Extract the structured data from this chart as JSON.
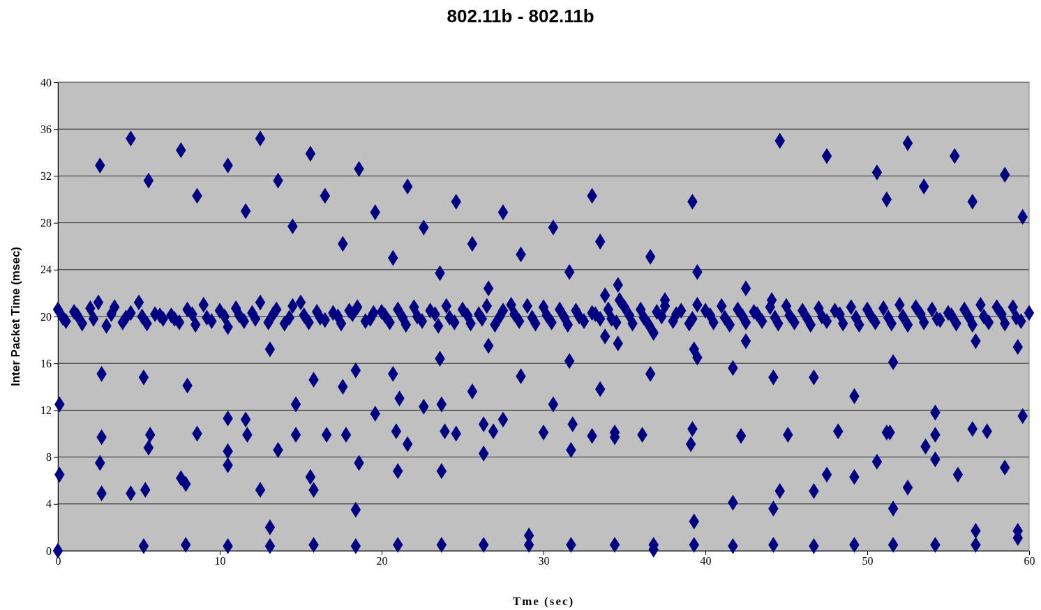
{
  "chart_data": {
    "type": "scatter",
    "title": "802.11b - 802.11b",
    "xlabel": "Tme (sec)",
    "ylabel": "Inter Packet Time (msec)",
    "xlim": [
      0,
      60
    ],
    "ylim": [
      0,
      40
    ],
    "xticks": [
      0,
      10,
      20,
      30,
      40,
      50,
      60
    ],
    "yticks": [
      0,
      4,
      8,
      12,
      16,
      20,
      24,
      28,
      32,
      36,
      40
    ],
    "grid": "y",
    "marker": "diamond",
    "series": [
      {
        "color": "#000080",
        "x": [
          0,
          0.1,
          0.1,
          2.6,
          2.7,
          2.7,
          2.6,
          2.7,
          4.5,
          4.5,
          5.6,
          5.3,
          5.7,
          5.6,
          5.4,
          5.3,
          7.6,
          8.6,
          8.0,
          8.6,
          7.6,
          7.9,
          7.9,
          10.5,
          11.6,
          10.5,
          11.6,
          11.7,
          10.5,
          10.5,
          10.5,
          12.5,
          13.6,
          13.1,
          13.6,
          12.5,
          13.1,
          13.1,
          15.6,
          14.5,
          16.5,
          14.7,
          15.8,
          14.7,
          16.6,
          15.6,
          15.8,
          15.8,
          17.6,
          18.6,
          19.6,
          17.6,
          18.4,
          17.8,
          18.6,
          18.4,
          18.4,
          20.7,
          21.6,
          19.6,
          20.7,
          21.1,
          20.9,
          21.6,
          21.0,
          21.0,
          22.6,
          23.6,
          24.6,
          22.6,
          23.6,
          23.7,
          23.9,
          24.6,
          23.7,
          23.7,
          25.6,
          27.5,
          26.6,
          25.6,
          26.6,
          26.3,
          26.9,
          27.5,
          26.3,
          26.3,
          28.6,
          30.6,
          28.6,
          30.6,
          30.0,
          29.1,
          29.1,
          31.6,
          33.0,
          33.5,
          31.6,
          31.8,
          33.0,
          33.5,
          33.8,
          33.8,
          34.6,
          34.6,
          31.7,
          31.7,
          34.4,
          34.4,
          34.4,
          36.6,
          36.6,
          36.1,
          36.8,
          36.8,
          36.8,
          39.2,
          39.5,
          39.3,
          39.5,
          39.2,
          39.1,
          39.3,
          39.3,
          41.7,
          42.2,
          42.5,
          42.5,
          41.7,
          41.7,
          44.6,
          44.2,
          45.1,
          44.6,
          44.2,
          44.2,
          47.5,
          46.7,
          48.2,
          47.5,
          46.7,
          46.7,
          50.6,
          51.2,
          52.5,
          53.5,
          49.2,
          51.6,
          50.6,
          51.2,
          51.4,
          51.6,
          52.5,
          49.2,
          49.2,
          51.6,
          55.4,
          56.5,
          58.5,
          59.6,
          54.2,
          54.2,
          53.6,
          54.2,
          55.6,
          56.7,
          56.5,
          57.4,
          58.5,
          59.3,
          59.6,
          56.7,
          56.7,
          59.3,
          59.3,
          54.2,
          34.7,
          37.5,
          44.1,
          0,
          0.5,
          1,
          1.5,
          2,
          2.5,
          3,
          3.5,
          4,
          4.5,
          5,
          5.5,
          6,
          6.5,
          7,
          7.5,
          8,
          8.5,
          9,
          9.5,
          10,
          10.5,
          11,
          11.5,
          12,
          12.5,
          13,
          13.5,
          14,
          14.5,
          15,
          15.5,
          16,
          16.5,
          17,
          17.5,
          18,
          18.5,
          19,
          19.5,
          20,
          20.5,
          21,
          21.5,
          22,
          22.5,
          23,
          23.5,
          24,
          24.5,
          25,
          25.5,
          26,
          26.5,
          27,
          27.5,
          28,
          28.5,
          29,
          29.5,
          30,
          30.5,
          31,
          31.5,
          32,
          32.5,
          33,
          33.5,
          34,
          34.5,
          35,
          35.5,
          36,
          36.5,
          37,
          37.5,
          38,
          38.5,
          39,
          39.5,
          40,
          40.5,
          41,
          41.5,
          42,
          42.5,
          43,
          43.5,
          44,
          44.5,
          45,
          45.5,
          46,
          46.5,
          47,
          47.5,
          48,
          48.5,
          49,
          49.5,
          50,
          50.5,
          51,
          51.5,
          52,
          52.5,
          53,
          53.5,
          54,
          54.5,
          55,
          55.5,
          56,
          56.5,
          57,
          57.5,
          58,
          58.5,
          59,
          59.5,
          60,
          0.3,
          1.2,
          2.2,
          3.3,
          4.2,
          5.2,
          6.3,
          7.2,
          8.3,
          9.2,
          10.3,
          11.2,
          12.2,
          13.3,
          14.3,
          15.2,
          16.2,
          17.3,
          18.2,
          19.3,
          20.2,
          21.3,
          22.2,
          23.3,
          24.2,
          25.3,
          26.2,
          27.3,
          28.2,
          29.3,
          30.2,
          31.3,
          32.2,
          33.2,
          34.2,
          35.3,
          36.2,
          37.3,
          38.2,
          39.2,
          40.3,
          41.2,
          42.3,
          43.2,
          44.3,
          45.2,
          46.3,
          47.2,
          48.3,
          49.3,
          50.2,
          51.3,
          52.2,
          53.3,
          54.3,
          55.2,
          56.3,
          57.2,
          58.3,
          59.2
        ],
        "values": [
          0,
          12.5,
          6.5,
          32.9,
          15.1,
          9.7,
          7.5,
          4.9,
          35.2,
          4.9,
          31.6,
          14.8,
          9.9,
          8.8,
          5.2,
          0.4,
          34.2,
          30.3,
          14.1,
          10.0,
          6.2,
          5.7,
          0.5,
          32.9,
          29.0,
          11.3,
          11.2,
          9.9,
          8.5,
          7.3,
          0.4,
          35.2,
          31.6,
          17.2,
          8.6,
          5.2,
          2.0,
          0.4,
          33.9,
          27.7,
          30.3,
          12.5,
          14.6,
          9.9,
          9.9,
          6.3,
          5.2,
          0.5,
          26.2,
          32.6,
          28.9,
          14.0,
          15.4,
          9.9,
          7.5,
          3.5,
          0.4,
          25.0,
          31.1,
          11.7,
          15.1,
          13.0,
          10.2,
          9.1,
          6.8,
          0.5,
          27.6,
          23.7,
          29.8,
          12.3,
          16.4,
          12.5,
          10.2,
          10.0,
          6.8,
          0.5,
          26.2,
          28.9,
          22.4,
          13.6,
          17.5,
          10.8,
          10.2,
          11.2,
          8.3,
          0.5,
          25.3,
          27.6,
          14.9,
          12.5,
          10.1,
          1.3,
          0.5,
          23.8,
          30.3,
          26.4,
          16.2,
          10.8,
          9.8,
          13.8,
          18.3,
          21.8,
          22.7,
          17.7,
          8.6,
          0.5,
          10.1,
          9.7,
          0.5,
          25.1,
          15.1,
          9.9,
          18.6,
          0.5,
          0.1,
          29.8,
          23.8,
          17.2,
          16.5,
          10.4,
          9.1,
          2.5,
          0.5,
          15.6,
          9.8,
          17.9,
          22.4,
          4.1,
          0.4,
          35.0,
          14.8,
          9.9,
          5.1,
          3.6,
          0.5,
          33.7,
          14.8,
          10.2,
          6.5,
          5.1,
          0.4,
          32.3,
          30.0,
          34.8,
          31.1,
          13.2,
          16.1,
          7.6,
          10.1,
          10.1,
          3.6,
          5.4,
          6.3,
          0.5,
          0.5,
          33.7,
          29.8,
          32.1,
          28.5,
          11.8,
          9.9,
          8.9,
          7.8,
          6.5,
          17.9,
          10.4,
          10.2,
          7.1,
          17.4,
          11.5,
          1.7,
          0.5,
          1.7,
          1.1,
          0.5,
          21.4,
          21.4,
          21.4,
          20.6,
          19.6,
          20.4,
          19.4,
          20.7,
          21.2,
          19.2,
          20.8,
          19.5,
          20.3,
          21.2,
          19.4,
          20.2,
          19.8,
          20.1,
          19.5,
          20.6,
          19.3,
          21.0,
          19.6,
          20.5,
          19.1,
          20.7,
          19.6,
          20.3,
          21.2,
          19.5,
          20.6,
          19.4,
          20.9,
          21.2,
          19.5,
          20.4,
          19.7,
          20.3,
          19.4,
          20.5,
          20.8,
          19.6,
          20.3,
          20.4,
          19.5,
          20.6,
          19.3,
          20.8,
          19.6,
          20.5,
          19.2,
          20.9,
          19.5,
          20.6,
          19.4,
          20.2,
          20.9,
          19.3,
          20.5,
          21.0,
          19.6,
          20.9,
          19.4,
          20.8,
          19.5,
          20.6,
          19.3,
          20.5,
          19.6,
          20.3,
          19.8,
          20.6,
          19.5,
          20.8,
          19.4,
          20.6,
          19.3,
          20.4,
          20.9,
          19.6,
          20.5,
          19.4,
          21.0,
          20.5,
          19.5,
          20.9,
          19.3,
          20.6,
          19.5,
          20.4,
          19.6,
          20.8,
          19.4,
          20.9,
          19.5,
          20.5,
          19.3,
          20.7,
          19.6,
          20.5,
          19.4,
          20.8,
          19.3,
          20.6,
          19.5,
          20.7,
          19.4,
          21.0,
          19.3,
          20.8,
          19.5,
          20.6,
          19.7,
          20.3,
          19.4,
          20.6,
          19.3,
          21.0,
          19.5,
          20.8,
          19.4,
          20.8,
          19.6,
          20.3,
          19.9,
          20.1,
          19.8,
          20.2,
          19.9,
          20.0,
          20.1,
          19.8,
          20.2,
          19.9,
          20.0,
          20.1,
          19.8,
          20.2,
          19.9,
          20.1,
          19.9,
          20.0,
          20.2,
          19.8,
          20.1,
          19.9,
          20.0,
          20.2,
          19.9,
          20.1,
          19.8,
          20.0,
          20.2,
          19.9,
          20.1,
          19.9,
          20.0,
          20.2,
          19.8,
          20.1,
          19.9,
          20.0,
          20.2,
          19.8,
          20.1,
          19.9,
          20.0,
          20.2,
          19.9,
          20.1,
          19.8,
          20.0,
          20.2,
          19.9,
          20.1,
          19.9,
          20.0,
          20.2,
          19.8,
          20.1,
          19.9,
          20.0,
          20.2,
          19.9
        ]
      }
    ]
  }
}
